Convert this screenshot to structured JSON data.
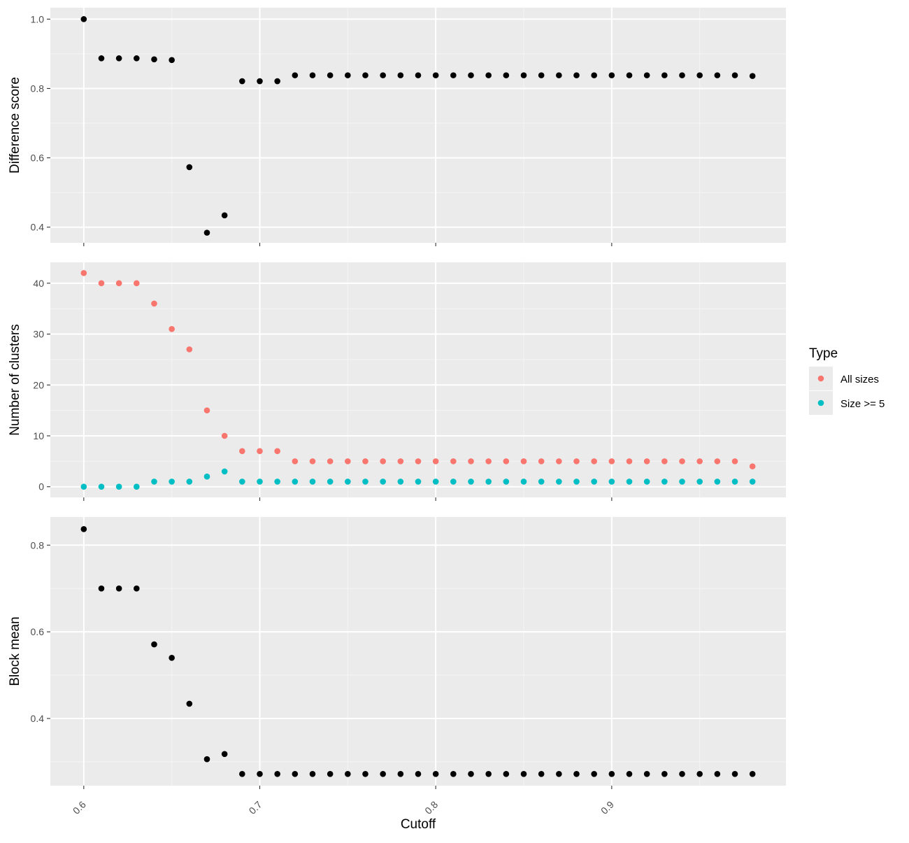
{
  "colors": {
    "panel_background": "#ebebeb",
    "grid_major": "#ffffff",
    "grid_minor": "#f4f4f4",
    "points_default": "#000000",
    "all_sizes": "#f8766d",
    "size_ge_5": "#00bfc4"
  },
  "chart_data": {
    "type": "scatter",
    "xlabel": "Cutoff",
    "x_ticks": [
      "0.6",
      "0.7",
      "0.8",
      "0.9"
    ],
    "x_tick_values": [
      0.6,
      0.7,
      0.8,
      0.9
    ],
    "xlim": [
      0.581,
      0.999
    ],
    "grid": true,
    "legend": {
      "title": "Type",
      "position": "right",
      "entries": [
        {
          "label": "All sizes",
          "color": "#f8766d"
        },
        {
          "label": "Size >= 5",
          "color": "#00bfc4"
        }
      ]
    },
    "x": [
      0.6,
      0.61,
      0.62,
      0.63,
      0.64,
      0.65,
      0.66,
      0.67,
      0.68,
      0.69,
      0.7,
      0.71,
      0.72,
      0.73,
      0.74,
      0.75,
      0.76,
      0.77,
      0.78,
      0.79,
      0.8,
      0.81,
      0.82,
      0.83,
      0.84,
      0.85,
      0.86,
      0.87,
      0.88,
      0.89,
      0.9,
      0.91,
      0.92,
      0.93,
      0.94,
      0.95,
      0.96,
      0.97,
      0.98
    ],
    "panels": [
      {
        "ylabel": "Difference score",
        "ylim": [
          0.355,
          1.033
        ],
        "y_ticks": [
          "0.4",
          "0.6",
          "0.8",
          "1.0"
        ],
        "y_tick_values": [
          0.4,
          0.6,
          0.8,
          1.0
        ],
        "series": [
          {
            "color": "#000000",
            "values": [
              1.0,
              0.887,
              0.887,
              0.887,
              0.884,
              0.882,
              0.573,
              0.384,
              0.434,
              0.821,
              0.821,
              0.821,
              0.838,
              0.838,
              0.838,
              0.838,
              0.838,
              0.838,
              0.838,
              0.838,
              0.838,
              0.838,
              0.838,
              0.838,
              0.838,
              0.838,
              0.838,
              0.838,
              0.838,
              0.838,
              0.838,
              0.838,
              0.838,
              0.838,
              0.838,
              0.838,
              0.838,
              0.838,
              0.836
            ]
          }
        ]
      },
      {
        "ylabel": "Number of clusters",
        "ylim": [
          -2.1,
          44.1
        ],
        "y_ticks": [
          "0",
          "10",
          "20",
          "30",
          "40"
        ],
        "y_tick_values": [
          0,
          10,
          20,
          30,
          40
        ],
        "series": [
          {
            "name": "All sizes",
            "color": "#f8766d",
            "values": [
              42,
              40,
              40,
              40,
              36,
              31,
              27,
              15,
              10,
              7,
              7,
              7,
              5,
              5,
              5,
              5,
              5,
              5,
              5,
              5,
              5,
              5,
              5,
              5,
              5,
              5,
              5,
              5,
              5,
              5,
              5,
              5,
              5,
              5,
              5,
              5,
              5,
              5,
              4
            ]
          },
          {
            "name": "Size >= 5",
            "color": "#00bfc4",
            "values": [
              0,
              0,
              0,
              0,
              1,
              1,
              1,
              2,
              3,
              1,
              1,
              1,
              1,
              1,
              1,
              1,
              1,
              1,
              1,
              1,
              1,
              1,
              1,
              1,
              1,
              1,
              1,
              1,
              1,
              1,
              1,
              1,
              1,
              1,
              1,
              1,
              1,
              1,
              1
            ]
          }
        ]
      },
      {
        "ylabel": "Block mean",
        "ylim": [
          0.245,
          0.865
        ],
        "y_ticks": [
          "0.4",
          "0.6",
          "0.8"
        ],
        "y_tick_values": [
          0.4,
          0.6,
          0.8
        ],
        "series": [
          {
            "color": "#000000",
            "values": [
              0.837,
              0.7,
              0.7,
              0.7,
              0.571,
              0.54,
              0.434,
              0.306,
              0.318,
              0.272,
              0.272,
              0.272,
              0.272,
              0.272,
              0.272,
              0.272,
              0.272,
              0.272,
              0.272,
              0.272,
              0.272,
              0.272,
              0.272,
              0.272,
              0.272,
              0.272,
              0.272,
              0.272,
              0.272,
              0.272,
              0.272,
              0.272,
              0.272,
              0.272,
              0.272,
              0.272,
              0.272,
              0.272,
              0.272
            ]
          }
        ]
      }
    ]
  }
}
